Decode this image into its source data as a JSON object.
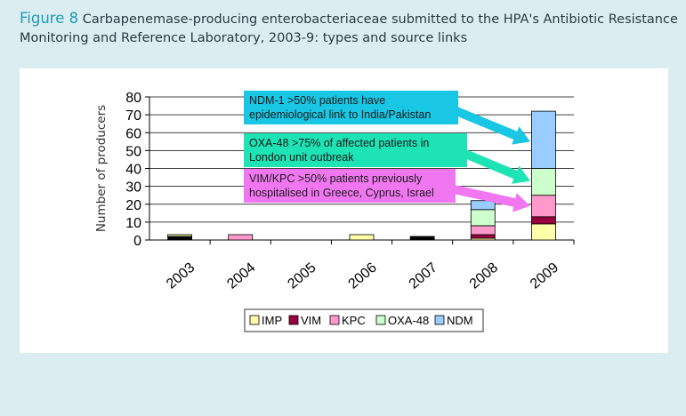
{
  "caption": {
    "figure_label": "Figure 8",
    "text": "Carbapenemase-producing enterobacteriaceae submitted to the HPA's Antibiotic Resistance Monitoring and Reference Laboratory, 2003-9: types and source links"
  },
  "chart_data": {
    "type": "bar",
    "stacked": true,
    "categories": [
      "2003",
      "2004",
      "2005",
      "2006",
      "2007",
      "2008",
      "2009"
    ],
    "ylabel": "Number of producers",
    "xlabel": "",
    "ylim": [
      0,
      80
    ],
    "yticks": [
      0,
      10,
      20,
      30,
      40,
      50,
      60,
      70,
      80
    ],
    "grid": true,
    "legend_position": "bottom",
    "series": [
      {
        "name": "IMP",
        "color": "#ffffaa",
        "values": [
          1,
          0,
          0,
          3,
          0,
          1,
          9
        ]
      },
      {
        "name": "VIM",
        "color": "#99003f",
        "values": [
          0,
          0,
          0,
          0,
          0,
          2,
          4
        ]
      },
      {
        "name": "KPC",
        "color": "#ff99cc",
        "values": [
          0,
          3,
          0,
          0,
          0,
          5,
          12
        ]
      },
      {
        "name": "OXA-48",
        "color": "#ccffcc",
        "values": [
          0,
          0,
          0,
          0,
          0,
          9,
          15
        ]
      },
      {
        "name": "NDM",
        "color": "#99ccff",
        "values": [
          0,
          0,
          0,
          0,
          0,
          5,
          32
        ]
      }
    ],
    "other_black_values": [
      2,
      0,
      0,
      0,
      2,
      0,
      0
    ],
    "annotations": [
      {
        "lines": [
          "NDM-1 >50% patients have",
          "epidemiological link to India/Pakistan"
        ],
        "color": "#19c6e3"
      },
      {
        "lines": [
          "OXA-48 >75% of affected patients in",
          "London unit outbreak"
        ],
        "color": "#1ee3b4"
      },
      {
        "lines": [
          "VIM/KPC >50% patients previously",
          "hospitalised in Greece, Cyprus, Israel"
        ],
        "color": "#f077f0"
      }
    ]
  }
}
